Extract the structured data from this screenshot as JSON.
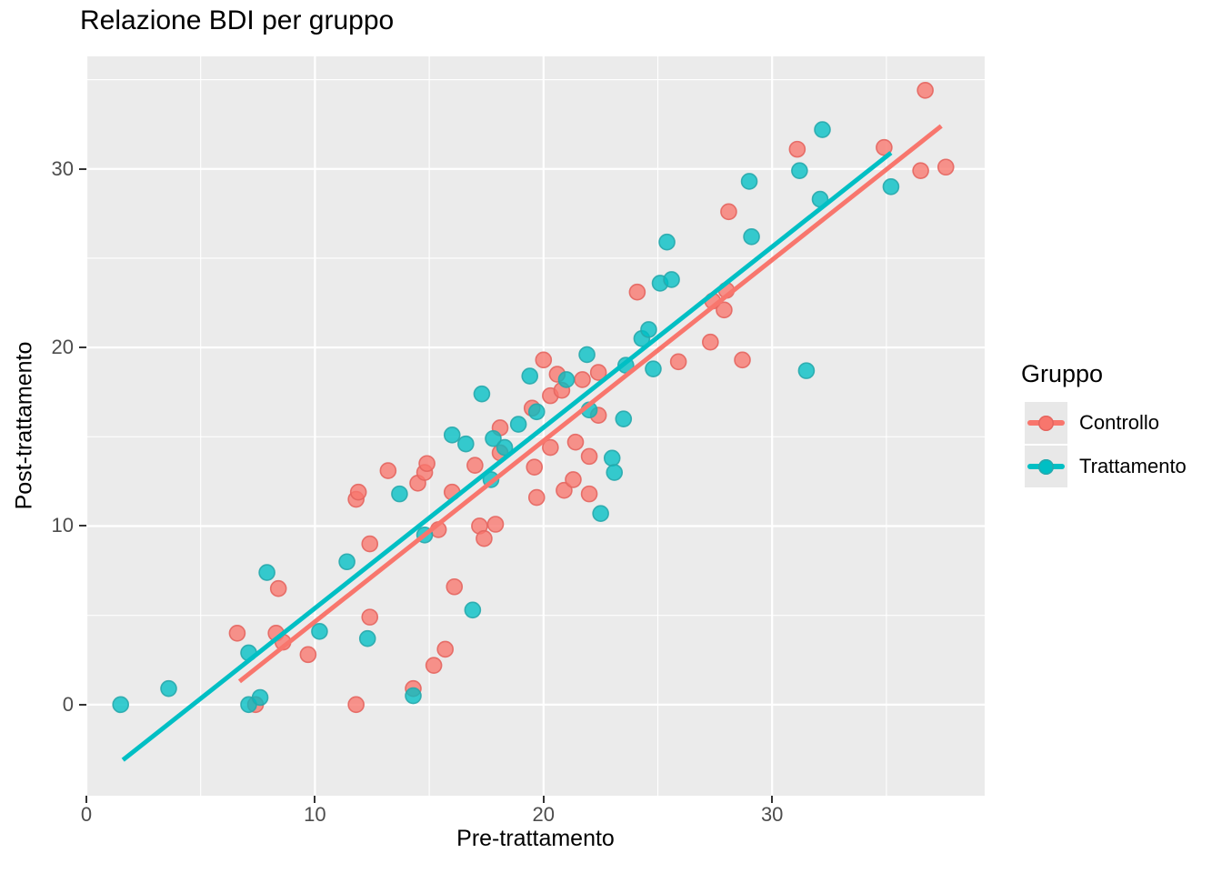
{
  "chart_data": {
    "type": "scatter",
    "title": "Relazione BDI per gruppo",
    "xlabel": "Pre-trattamento",
    "ylabel": "Post-trattamento",
    "xlim": [
      0,
      39.3
    ],
    "ylim": [
      -5.1,
      36.3
    ],
    "x_ticks": [
      0,
      10,
      20,
      30
    ],
    "y_ticks": [
      0,
      10,
      20,
      30
    ],
    "x_minor_ticks": [
      5,
      15,
      25,
      35
    ],
    "y_minor_ticks": [
      5,
      15,
      25,
      35
    ],
    "grid": true,
    "legend": {
      "title": "Gruppo",
      "position": "right",
      "items": [
        {
          "label": "Controllo",
          "color": "#F8766D"
        },
        {
          "label": "Trattamento",
          "color": "#00BFC4"
        }
      ]
    },
    "series": [
      {
        "name": "Controllo",
        "color": "#F8766D",
        "stroke": "#E4655F",
        "trend": [
          [
            6.7,
            1.3
          ],
          [
            37.4,
            32.4
          ]
        ],
        "points": [
          [
            6.6,
            4.0
          ],
          [
            7.4,
            0.0
          ],
          [
            8.3,
            4.0
          ],
          [
            8.6,
            3.5
          ],
          [
            8.4,
            6.5
          ],
          [
            9.7,
            2.8
          ],
          [
            11.8,
            0.0
          ],
          [
            11.8,
            11.5
          ],
          [
            11.9,
            11.9
          ],
          [
            12.4,
            9.0
          ],
          [
            12.4,
            4.9
          ],
          [
            13.2,
            13.1
          ],
          [
            14.3,
            0.9
          ],
          [
            14.5,
            12.4
          ],
          [
            14.8,
            13.0
          ],
          [
            14.9,
            13.5
          ],
          [
            15.2,
            2.2
          ],
          [
            15.4,
            9.8
          ],
          [
            15.7,
            3.1
          ],
          [
            16.0,
            11.9
          ],
          [
            16.1,
            6.6
          ],
          [
            17.0,
            13.4
          ],
          [
            17.2,
            10.0
          ],
          [
            17.4,
            9.3
          ],
          [
            17.9,
            10.1
          ],
          [
            18.1,
            15.5
          ],
          [
            18.1,
            14.1
          ],
          [
            19.5,
            16.6
          ],
          [
            19.6,
            13.3
          ],
          [
            19.7,
            11.6
          ],
          [
            20.0,
            19.3
          ],
          [
            20.3,
            17.3
          ],
          [
            20.3,
            14.4
          ],
          [
            20.6,
            18.5
          ],
          [
            20.8,
            17.6
          ],
          [
            20.9,
            12.0
          ],
          [
            21.3,
            12.6
          ],
          [
            21.4,
            14.7
          ],
          [
            21.7,
            18.2
          ],
          [
            22.0,
            13.9
          ],
          [
            22.0,
            11.8
          ],
          [
            22.4,
            18.6
          ],
          [
            22.4,
            16.2
          ],
          [
            24.1,
            23.1
          ],
          [
            25.9,
            19.2
          ],
          [
            27.3,
            20.3
          ],
          [
            27.4,
            22.6
          ],
          [
            27.9,
            22.1
          ],
          [
            28.0,
            23.2
          ],
          [
            28.1,
            27.6
          ],
          [
            28.7,
            19.3
          ],
          [
            31.1,
            31.1
          ],
          [
            34.9,
            31.2
          ],
          [
            36.5,
            29.9
          ],
          [
            36.7,
            34.4
          ],
          [
            37.6,
            30.1
          ]
        ]
      },
      {
        "name": "Trattamento",
        "color": "#00BFC4",
        "stroke": "#27A8AC",
        "trend": [
          [
            1.6,
            -3.1
          ],
          [
            35.2,
            30.9
          ]
        ],
        "points": [
          [
            1.5,
            0.0
          ],
          [
            3.6,
            0.9
          ],
          [
            7.1,
            0.0
          ],
          [
            7.6,
            0.4
          ],
          [
            7.1,
            2.9
          ],
          [
            7.9,
            7.4
          ],
          [
            10.2,
            4.1
          ],
          [
            11.4,
            8.0
          ],
          [
            12.3,
            3.7
          ],
          [
            13.7,
            11.8
          ],
          [
            14.3,
            0.5
          ],
          [
            14.8,
            9.5
          ],
          [
            16.0,
            15.1
          ],
          [
            16.6,
            14.6
          ],
          [
            16.9,
            5.3
          ],
          [
            17.3,
            17.4
          ],
          [
            17.7,
            12.6
          ],
          [
            17.8,
            14.9
          ],
          [
            18.3,
            14.4
          ],
          [
            18.9,
            15.7
          ],
          [
            19.4,
            18.4
          ],
          [
            19.7,
            16.4
          ],
          [
            21.0,
            18.2
          ],
          [
            21.9,
            19.6
          ],
          [
            22.0,
            16.5
          ],
          [
            22.5,
            10.7
          ],
          [
            23.0,
            13.8
          ],
          [
            23.1,
            13.0
          ],
          [
            23.5,
            16.0
          ],
          [
            23.6,
            19.0
          ],
          [
            24.3,
            20.5
          ],
          [
            24.6,
            21.0
          ],
          [
            24.8,
            18.8
          ],
          [
            25.1,
            23.6
          ],
          [
            25.4,
            25.9
          ],
          [
            25.6,
            23.8
          ],
          [
            29.0,
            29.3
          ],
          [
            29.1,
            26.2
          ],
          [
            31.2,
            29.9
          ],
          [
            31.5,
            18.7
          ],
          [
            32.1,
            28.3
          ],
          [
            32.2,
            32.2
          ],
          [
            35.2,
            29.0
          ]
        ]
      }
    ]
  },
  "style_colors": {
    "panel_bg": "#EBEBEB",
    "grid": "#FFFFFF",
    "tick": "#333333",
    "tick_label": "#4D4D4D",
    "legend_key_bg": "#E8E8E8"
  }
}
